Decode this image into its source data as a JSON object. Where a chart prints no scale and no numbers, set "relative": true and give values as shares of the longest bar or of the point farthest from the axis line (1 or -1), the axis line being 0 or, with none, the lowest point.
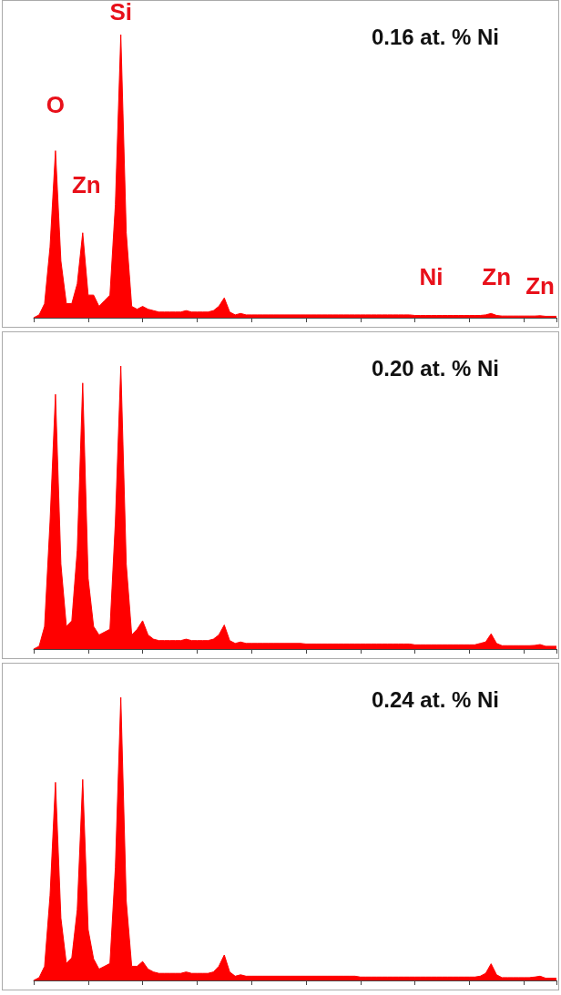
{
  "chart_data": [
    {
      "type": "area",
      "title": "0.16 at. % Ni",
      "relative": true,
      "tick_labels": false,
      "grid": false,
      "annotations": [
        "O",
        "Si",
        "Zn",
        "Ni",
        "Zn",
        "Zn"
      ],
      "categories": [
        null,
        null,
        null,
        null,
        null,
        null,
        null,
        null,
        null,
        null,
        null,
        null,
        null,
        null,
        null,
        null,
        null,
        null,
        null,
        null,
        null,
        null,
        null,
        null,
        null,
        null,
        null,
        null,
        null,
        null,
        null,
        null,
        null,
        null,
        null,
        null,
        null,
        null,
        null,
        null,
        null,
        null,
        null,
        null,
        null,
        null,
        null,
        null,
        null,
        null,
        null,
        null,
        null,
        null,
        null,
        null,
        null,
        null,
        null,
        null,
        null,
        null,
        null,
        null,
        null,
        null,
        null,
        null,
        null,
        null,
        null,
        null,
        null,
        null,
        null,
        null,
        null,
        null,
        null,
        null,
        null,
        null,
        null,
        null,
        null,
        null,
        null,
        null,
        null,
        null,
        null,
        null,
        null,
        null,
        null,
        null,
        null
      ],
      "series": [
        {
          "color": "#ff0000",
          "values": [
            0,
            0.01,
            0.05,
            0.25,
            0.59,
            0.2,
            0.05,
            0.05,
            0.12,
            0.3,
            0.08,
            0.08,
            0.04,
            0.06,
            0.08,
            0.4,
            1,
            0.3,
            0.04,
            0.03,
            0.04,
            0.03,
            0.025,
            0.02,
            0.02,
            0.02,
            0.02,
            0.02,
            0.025,
            0.02,
            0.02,
            0.02,
            0.02,
            0.025,
            0.04,
            0.07,
            0.02,
            0.01,
            0.015,
            0.01,
            0.01,
            0.01,
            0.01,
            0.01,
            0.01,
            0.01,
            0.01,
            0.01,
            0.01,
            0.01,
            0.01,
            0.01,
            0.01,
            0.01,
            0.01,
            0.01,
            0.01,
            0.01,
            0.01,
            0.01,
            0.01,
            0.01,
            0.01,
            0.01,
            0.01,
            0.01,
            0.01,
            0.01,
            0.01,
            0.01,
            0.008,
            0.008,
            0.008,
            0.008,
            0.008,
            0.008,
            0.008,
            0.008,
            0.008,
            0.008,
            0.008,
            0.008,
            0.008,
            0.01,
            0.015,
            0.008,
            0.006,
            0.006,
            0.006,
            0.006,
            0.006,
            0.006,
            0.006,
            0.007,
            0.005,
            0.005,
            0.005
          ]
        }
      ]
    },
    {
      "type": "area",
      "title": "0.20 at. % Ni",
      "relative": true,
      "tick_labels": false,
      "grid": false,
      "categories": [
        null,
        null,
        null,
        null,
        null,
        null,
        null,
        null,
        null,
        null,
        null,
        null,
        null,
        null,
        null,
        null,
        null,
        null,
        null,
        null,
        null,
        null,
        null,
        null,
        null,
        null,
        null,
        null,
        null,
        null,
        null,
        null,
        null,
        null,
        null,
        null,
        null,
        null,
        null,
        null,
        null,
        null,
        null,
        null,
        null,
        null,
        null,
        null,
        null,
        null,
        null,
        null,
        null,
        null,
        null,
        null,
        null,
        null,
        null,
        null,
        null,
        null,
        null,
        null,
        null,
        null,
        null,
        null,
        null,
        null,
        null,
        null,
        null,
        null,
        null,
        null,
        null,
        null,
        null,
        null,
        null,
        null,
        null,
        null,
        null,
        null,
        null,
        null,
        null,
        null,
        null,
        null,
        null,
        null,
        null,
        null,
        null
      ],
      "series": [
        {
          "color": "#ff0000",
          "values": [
            0,
            0.01,
            0.08,
            0.45,
            0.9,
            0.3,
            0.08,
            0.1,
            0.35,
            0.94,
            0.25,
            0.08,
            0.05,
            0.06,
            0.07,
            0.45,
            1,
            0.3,
            0.05,
            0.07,
            0.1,
            0.05,
            0.035,
            0.03,
            0.03,
            0.03,
            0.03,
            0.03,
            0.035,
            0.03,
            0.03,
            0.03,
            0.03,
            0.035,
            0.05,
            0.085,
            0.03,
            0.02,
            0.025,
            0.02,
            0.02,
            0.02,
            0.02,
            0.02,
            0.02,
            0.02,
            0.02,
            0.02,
            0.02,
            0.02,
            0.018,
            0.018,
            0.018,
            0.018,
            0.018,
            0.018,
            0.018,
            0.018,
            0.018,
            0.018,
            0.018,
            0.018,
            0.018,
            0.018,
            0.018,
            0.018,
            0.018,
            0.018,
            0.018,
            0.018,
            0.015,
            0.015,
            0.015,
            0.015,
            0.015,
            0.015,
            0.015,
            0.015,
            0.015,
            0.015,
            0.015,
            0.015,
            0.02,
            0.025,
            0.054,
            0.02,
            0.012,
            0.012,
            0.012,
            0.012,
            0.012,
            0.012,
            0.013,
            0.016,
            0.01,
            0.01,
            0.01
          ]
        }
      ]
    },
    {
      "type": "area",
      "title": "0.24 at. % Ni",
      "relative": true,
      "tick_labels": false,
      "grid": false,
      "categories": [
        null,
        null,
        null,
        null,
        null,
        null,
        null,
        null,
        null,
        null,
        null,
        null,
        null,
        null,
        null,
        null,
        null,
        null,
        null,
        null,
        null,
        null,
        null,
        null,
        null,
        null,
        null,
        null,
        null,
        null,
        null,
        null,
        null,
        null,
        null,
        null,
        null,
        null,
        null,
        null,
        null,
        null,
        null,
        null,
        null,
        null,
        null,
        null,
        null,
        null,
        null,
        null,
        null,
        null,
        null,
        null,
        null,
        null,
        null,
        null,
        null,
        null,
        null,
        null,
        null,
        null,
        null,
        null,
        null,
        null,
        null,
        null,
        null,
        null,
        null,
        null,
        null,
        null,
        null,
        null,
        null,
        null,
        null,
        null,
        null,
        null,
        null,
        null,
        null,
        null,
        null,
        null,
        null,
        null,
        null,
        null,
        null
      ],
      "series": [
        {
          "color": "#ff0000",
          "values": [
            0,
            0.01,
            0.05,
            0.3,
            0.7,
            0.22,
            0.06,
            0.08,
            0.25,
            0.71,
            0.18,
            0.076,
            0.04,
            0.05,
            0.06,
            0.4,
            1,
            0.28,
            0.05,
            0.05,
            0.067,
            0.04,
            0.03,
            0.025,
            0.025,
            0.025,
            0.025,
            0.025,
            0.03,
            0.025,
            0.025,
            0.025,
            0.025,
            0.03,
            0.05,
            0.09,
            0.03,
            0.015,
            0.02,
            0.015,
            0.015,
            0.015,
            0.015,
            0.015,
            0.015,
            0.015,
            0.015,
            0.015,
            0.015,
            0.015,
            0.015,
            0.015,
            0.015,
            0.015,
            0.015,
            0.015,
            0.015,
            0.015,
            0.015,
            0.015,
            0.012,
            0.012,
            0.012,
            0.012,
            0.012,
            0.012,
            0.012,
            0.012,
            0.012,
            0.012,
            0.012,
            0.012,
            0.012,
            0.012,
            0.012,
            0.012,
            0.012,
            0.012,
            0.012,
            0.012,
            0.012,
            0.012,
            0.015,
            0.025,
            0.059,
            0.02,
            0.01,
            0.01,
            0.01,
            0.01,
            0.01,
            0.01,
            0.012,
            0.015,
            0.008,
            0.008,
            0.008
          ]
        }
      ]
    }
  ]
}
